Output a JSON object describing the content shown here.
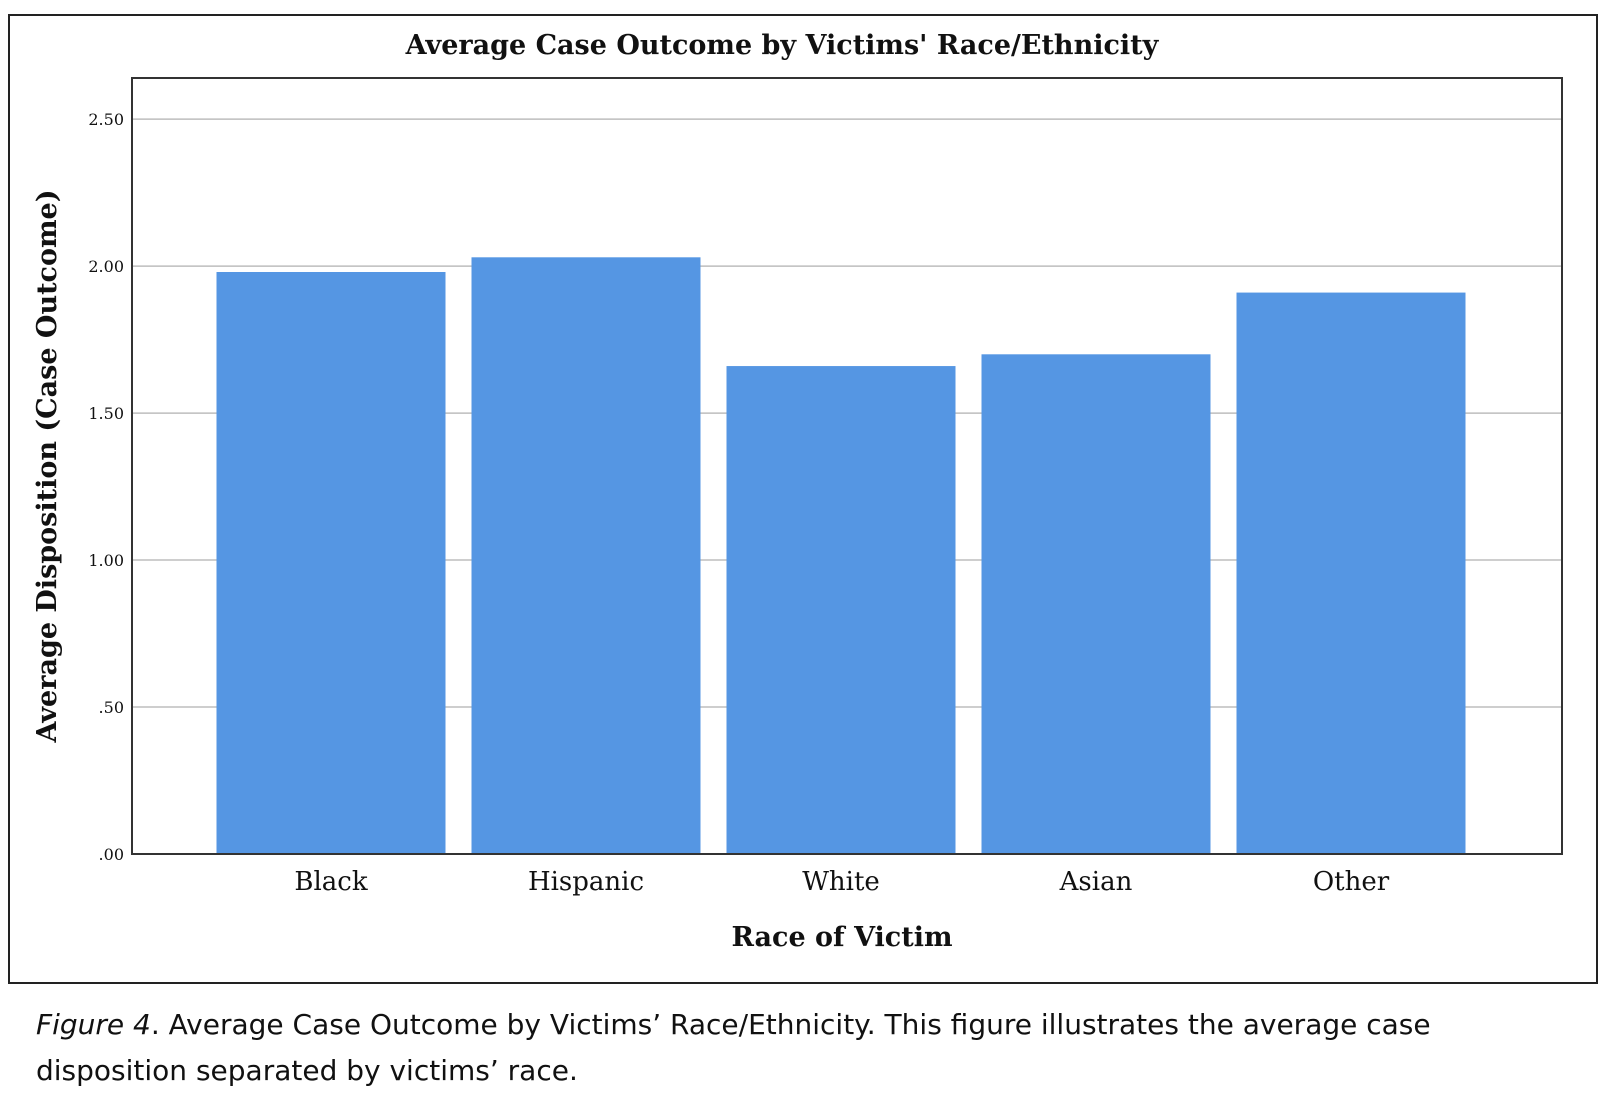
{
  "chart_data": {
    "type": "bar",
    "title": "Average Case Outcome by Victims' Race/Ethnicity",
    "xlabel": "Race of Victim",
    "ylabel": "Average Disposition (Case Outcome)",
    "categories": [
      "Black",
      "Hispanic",
      "White",
      "Asian",
      "Other"
    ],
    "values": [
      1.98,
      2.03,
      1.66,
      1.7,
      1.91
    ],
    "ylim": [
      0,
      2.64
    ],
    "yticks": [
      0,
      0.5,
      1.0,
      1.5,
      2.0,
      2.5
    ],
    "ytick_labels": [
      ".00",
      ".50",
      "1.00",
      "1.50",
      "2.00",
      "2.50"
    ],
    "grid": true,
    "bar_color": "#5596e3"
  },
  "caption": {
    "label": "Figure 4",
    "text": ". Average Case Outcome by Victims’ Race/Ethnicity. This figure illustrates the average case disposition separated by victims’ race."
  }
}
